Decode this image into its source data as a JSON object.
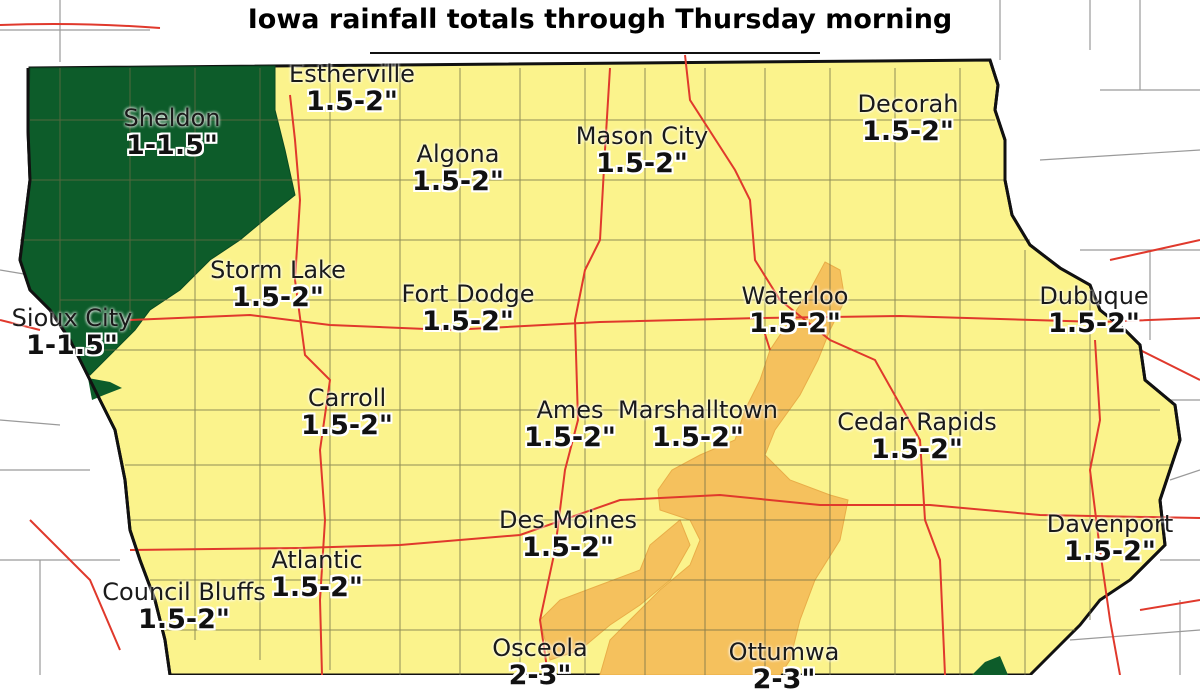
{
  "title": "Iowa rainfall totals through Thursday morning",
  "colors": {
    "band_1_1_5": "#0d5c2a",
    "band_1_5_2": "#fbf38c",
    "band_2_3": "#f5c15d",
    "roads": "#e0392c",
    "boundary": "#111111",
    "county_lines": "#6b6b45"
  },
  "labels": [
    {
      "city": "Estherville",
      "amount": "1.5-2\""
    },
    {
      "city": "Sheldon",
      "amount": "1-1.5\""
    },
    {
      "city": "Decorah",
      "amount": "1.5-2\""
    },
    {
      "city": "Mason City",
      "amount": "1.5-2\""
    },
    {
      "city": "Algona",
      "amount": "1.5-2\""
    },
    {
      "city": "Storm Lake",
      "amount": "1.5-2\""
    },
    {
      "city": "Fort Dodge",
      "amount": "1.5-2\""
    },
    {
      "city": "Waterloo",
      "amount": "1.5-2\""
    },
    {
      "city": "Dubuque",
      "amount": "1.5-2\""
    },
    {
      "city": "Sioux City",
      "amount": "1-1.5\""
    },
    {
      "city": "Carroll",
      "amount": "1.5-2\""
    },
    {
      "city": "Ames",
      "amount": "1.5-2\""
    },
    {
      "city": "Marshalltown",
      "amount": "1.5-2\""
    },
    {
      "city": "Cedar Rapids",
      "amount": "1.5-2\""
    },
    {
      "city": "Des Moines",
      "amount": "1.5-2\""
    },
    {
      "city": "Davenport",
      "amount": "1.5-2\""
    },
    {
      "city": "Atlantic",
      "amount": "1.5-2\""
    },
    {
      "city": "Council Bluffs",
      "amount": "1.5-2\""
    },
    {
      "city": "Osceola",
      "amount": "2-3\""
    },
    {
      "city": "Ottumwa",
      "amount": "2-3\""
    }
  ]
}
